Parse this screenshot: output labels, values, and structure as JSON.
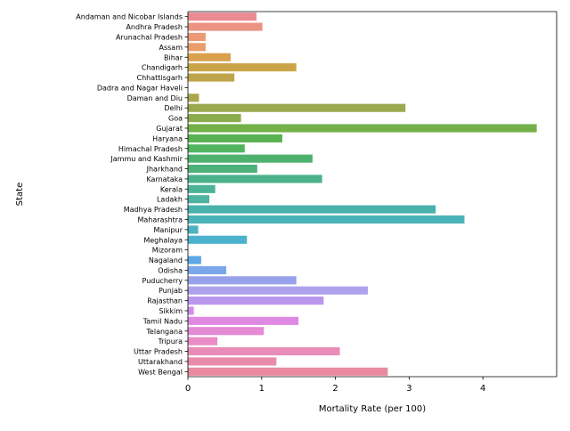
{
  "chart_data": {
    "type": "bar",
    "orientation": "horizontal",
    "xlabel": "Mortality Rate (per 100)",
    "ylabel": "State",
    "xlim": [
      0,
      5.0
    ],
    "xticks": [
      0,
      1,
      2,
      3,
      4
    ],
    "xtick_labels": [
      "0",
      "1",
      "2",
      "3",
      "4"
    ],
    "grid": false,
    "legend": "none",
    "categories": [
      "Andaman and Nicobar Islands",
      "Andhra Pradesh",
      "Arunachal Pradesh",
      "Assam",
      "Bihar",
      "Chandigarh",
      "Chhattisgarh",
      "Dadra and Nagar Haveli",
      "Daman and Diu",
      "Delhi",
      "Goa",
      "Gujarat",
      "Haryana",
      "Himachal Pradesh",
      "Jammu and Kashmir",
      "Jharkhand",
      "Karnataka",
      "Kerala",
      "Ladakh",
      "Madhya Pradesh",
      "Maharashtra",
      "Manipur",
      "Meghalaya",
      "Mizoram",
      "Nagaland",
      "Odisha",
      "Puducherry",
      "Punjab",
      "Rajasthan",
      "Sikkim",
      "Tamil Nadu",
      "Telangana",
      "Tripura",
      "Uttar Pradesh",
      "Uttarakhand",
      "West Bengal"
    ],
    "values": [
      0.93,
      1.01,
      0.24,
      0.24,
      0.58,
      1.47,
      0.63,
      0.0,
      0.15,
      2.95,
      0.72,
      4.73,
      1.28,
      0.77,
      1.69,
      0.94,
      1.82,
      0.37,
      0.29,
      3.36,
      3.75,
      0.14,
      0.8,
      0.0,
      0.18,
      0.52,
      1.47,
      2.44,
      1.84,
      0.08,
      1.5,
      1.03,
      0.4,
      2.06,
      1.2,
      2.71
    ],
    "colors": [
      "#ea8a92",
      "#eb9484",
      "#ec9976",
      "#e89d6a",
      "#d9a04e",
      "#c9a548",
      "#bfa549",
      "#b5a64a",
      "#a9a84c",
      "#9aa94c",
      "#8bac4c",
      "#73b048",
      "#58b252",
      "#51b45e",
      "#4eb26e",
      "#4db279",
      "#4cb28b",
      "#4cb397",
      "#4eb3a1",
      "#49b2ad",
      "#4ab3b7",
      "#4bb2c2",
      "#4bb1cc",
      "#53aed9",
      "#5ea9e6",
      "#7ca6ea",
      "#98a2eb",
      "#ada3ed",
      "#b997ee",
      "#d28ced",
      "#e089e3",
      "#e58ad4",
      "#ea8cc5",
      "#e88cb8",
      "#e98cab",
      "#e98aa1"
    ]
  }
}
